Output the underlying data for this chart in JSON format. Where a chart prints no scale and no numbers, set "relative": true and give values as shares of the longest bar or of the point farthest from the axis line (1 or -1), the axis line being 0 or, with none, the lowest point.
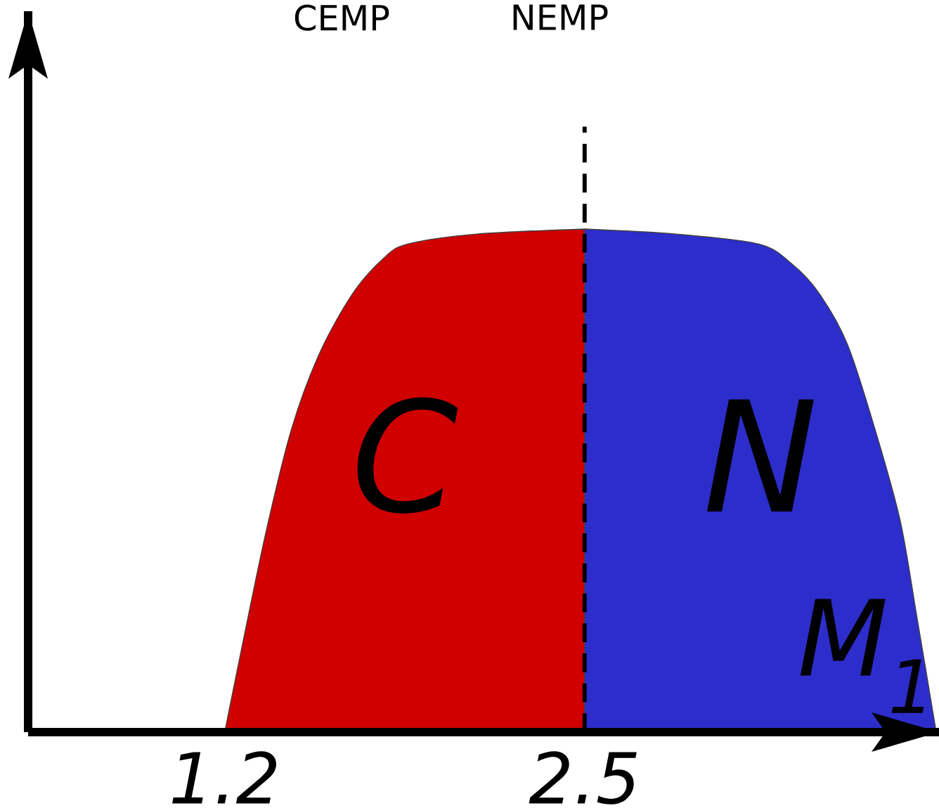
{
  "chart_data": {
    "type": "area",
    "relative": true,
    "annotations": [
      "CEMP",
      "NEMP"
    ],
    "xlabel": "M$_{1}$",
    "xlim": [
      0.49,
      3.78
    ],
    "xticks": [
      1.2,
      2.5
    ],
    "series": [
      {
        "name": "C",
        "color": "#d00000",
        "x": [
          1.2,
          1.27,
          1.35,
          1.44,
          1.54,
          1.66,
          1.77,
          1.86,
          2.11,
          2.5
        ],
        "values": [
          0,
          0.19,
          0.4,
          0.6,
          0.75,
          0.87,
          0.94,
          0.97,
          0.99,
          1
        ]
      },
      {
        "name": "N",
        "color": "#2d2dcc",
        "x": [
          2.5,
          2.83,
          3.13,
          3.25,
          3.35,
          3.45,
          3.55,
          3.64,
          3.7,
          3.77
        ],
        "values": [
          1,
          0.99,
          0.97,
          0.93,
          0.87,
          0.77,
          0.6,
          0.42,
          0.23,
          0
        ]
      }
    ],
    "ref_lines": [
      {
        "axis": "x",
        "value": 2.5,
        "line_style": "dashed"
      }
    ]
  }
}
